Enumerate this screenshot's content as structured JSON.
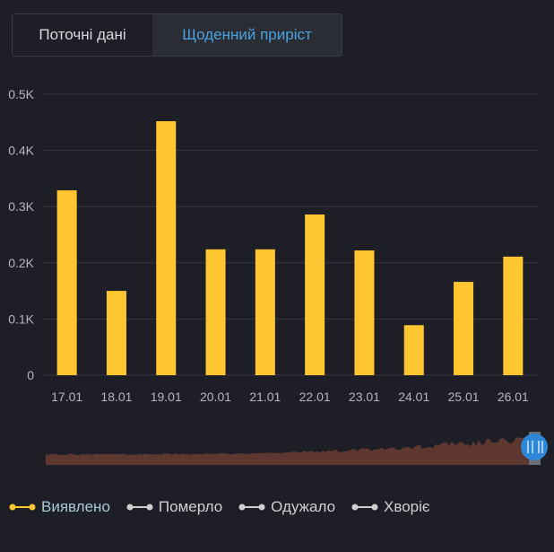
{
  "tabs": [
    {
      "label": "Поточні дані",
      "active": false
    },
    {
      "label": "Щоденний приріст",
      "active": true
    }
  ],
  "chart_data": {
    "type": "bar",
    "categories": [
      "17.01",
      "18.01",
      "19.01",
      "20.01",
      "21.01",
      "22.01",
      "23.01",
      "24.01",
      "25.01",
      "26.01"
    ],
    "series": [
      {
        "name": "Виявлено",
        "values": [
          329,
          150,
          452,
          224,
          224,
          286,
          222,
          89,
          166,
          211
        ]
      }
    ],
    "ylim": [
      0,
      500
    ],
    "yticks": [
      {
        "v": 0,
        "label": "0"
      },
      {
        "v": 100,
        "label": "0.1K"
      },
      {
        "v": 200,
        "label": "0.2K"
      },
      {
        "v": 300,
        "label": "0.3K"
      },
      {
        "v": 400,
        "label": "0.4K"
      },
      {
        "v": 500,
        "label": "0.5K"
      }
    ],
    "grid": true,
    "bar_color": "#ffc632",
    "legend_position": "bottom-left"
  },
  "legend": [
    {
      "label": "Виявлено",
      "color": "#ffc632",
      "text_color": "#a9c9d6"
    },
    {
      "label": "Померло",
      "color": "#d0d0d0",
      "text_color": "#d0d0d0"
    },
    {
      "label": "Одужало",
      "color": "#d0d0d0",
      "text_color": "#d0d0d0"
    },
    {
      "label": "Хворіє",
      "color": "#d0d0d0",
      "text_color": "#d0d0d0"
    }
  ]
}
